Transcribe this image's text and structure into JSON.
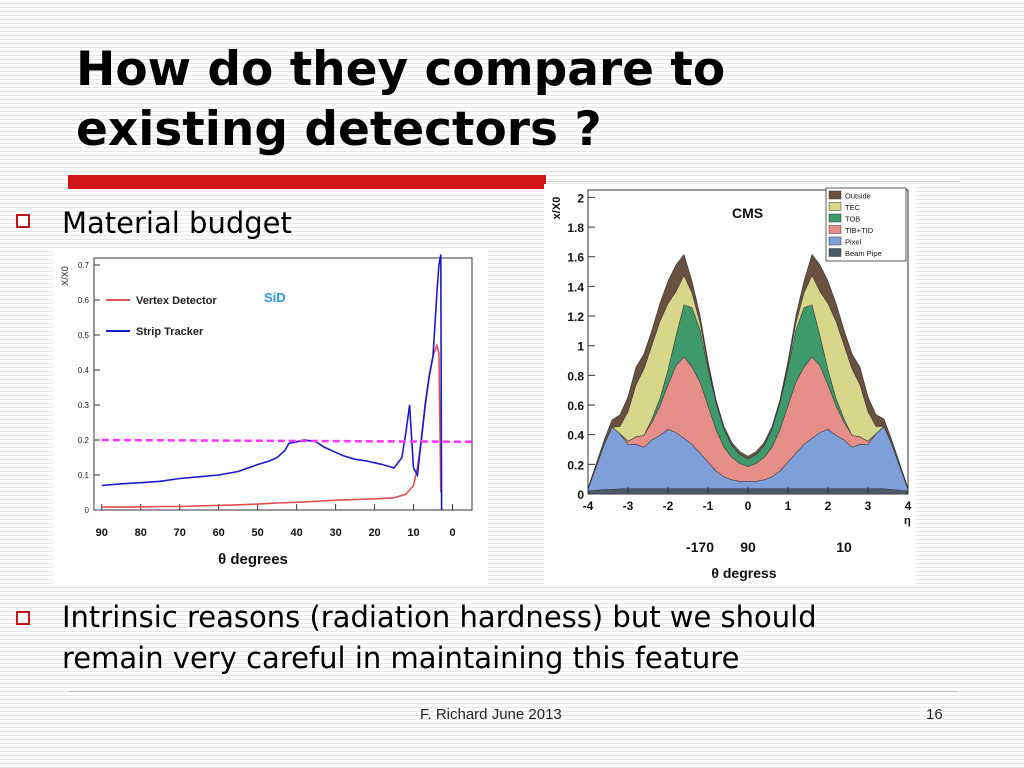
{
  "slide": {
    "title_line1": "How do they compare to",
    "title_line2": "existing detectors ?",
    "bullets": [
      "Material budget",
      "Intrinsic reasons (radiation hardness) but we should",
      "remain very careful in maintaining this feature"
    ],
    "footer": {
      "author_date": "F. Richard June 2013",
      "page_number": "16"
    },
    "colors": {
      "accent_red": "#d01616",
      "bullet_red": "#c0161b"
    }
  },
  "chart_data": [
    {
      "type": "line",
      "title": "SiD",
      "ylabel": "X/X0",
      "xlabel": "θ degrees",
      "x_ticks": [
        "90",
        "80",
        "70",
        "60",
        "50",
        "40",
        "30",
        "20",
        "10",
        "0"
      ],
      "y_ticks": [
        "0",
        "0.1",
        "0.2",
        "0.3",
        "0.4",
        "0.5",
        "0.6",
        "0.7"
      ],
      "xlim": [
        92,
        -5
      ],
      "ylim": [
        0,
        0.72
      ],
      "legend": "top-left",
      "series": [
        {
          "name": "Vertex Detector",
          "color": "#e05050",
          "x": [
            90,
            85,
            80,
            75,
            70,
            65,
            60,
            55,
            50,
            45,
            40,
            35,
            30,
            25,
            20,
            15,
            12,
            10,
            9,
            8,
            7,
            6,
            5,
            4,
            3.5,
            3
          ],
          "y": [
            0.009,
            0.009,
            0.009,
            0.01,
            0.01,
            0.012,
            0.013,
            0.015,
            0.017,
            0.02,
            0.022,
            0.025,
            0.028,
            0.03,
            0.032,
            0.035,
            0.045,
            0.07,
            0.12,
            0.2,
            0.3,
            0.38,
            0.44,
            0.47,
            0.45,
            0.05
          ]
        },
        {
          "name": "Strip Tracker",
          "color": "#1a1acc",
          "x": [
            90,
            85,
            80,
            75,
            70,
            65,
            60,
            55,
            50,
            47,
            45,
            43,
            42,
            40,
            38,
            35,
            33,
            30,
            28,
            25,
            22,
            20,
            18,
            15,
            13,
            12,
            11,
            10,
            9,
            8,
            7,
            6,
            5,
            4,
            3.5,
            3,
            2.8
          ],
          "y": [
            0.07,
            0.075,
            0.078,
            0.082,
            0.09,
            0.095,
            0.1,
            0.11,
            0.13,
            0.14,
            0.15,
            0.17,
            0.19,
            0.195,
            0.2,
            0.195,
            0.18,
            0.165,
            0.155,
            0.145,
            0.14,
            0.135,
            0.13,
            0.12,
            0.15,
            0.22,
            0.3,
            0.12,
            0.1,
            0.2,
            0.3,
            0.38,
            0.44,
            0.62,
            0.7,
            0.73,
            0.0
          ]
        },
        {
          "name": "",
          "color": "#ff33ff",
          "style": "dashed",
          "x": [
            90,
            -5
          ],
          "y": [
            0.2,
            0.195
          ]
        }
      ]
    },
    {
      "type": "area",
      "title": "CMS",
      "ylabel": "x/X0",
      "xlabel": "η",
      "secondary_xlabel": "θ degress",
      "secondary_x_ticks": [
        {
          "eta": -1.2,
          "label": "-170"
        },
        {
          "eta": 0,
          "label": "90"
        },
        {
          "eta": 2.4,
          "label": "10"
        }
      ],
      "x_ticks": [
        "-4",
        "-3",
        "-2",
        "-1",
        "0",
        "1",
        "2",
        "3",
        "4"
      ],
      "y_ticks": [
        "0",
        "0.2",
        "0.4",
        "0.6",
        "0.8",
        "1",
        "1.2",
        "1.4",
        "1.6",
        "1.8",
        "2"
      ],
      "xlim": [
        -4,
        4
      ],
      "ylim": [
        0,
        2.05
      ],
      "legend": "top-right",
      "eta": [
        -4,
        -3.6,
        -3.4,
        -3.2,
        -3.0,
        -2.8,
        -2.6,
        -2.4,
        -2.2,
        -2.0,
        -1.8,
        -1.6,
        -1.4,
        -1.2,
        -1.0,
        -0.8,
        -0.6,
        -0.4,
        -0.2,
        0,
        0.2,
        0.4,
        0.6,
        0.8,
        1.0,
        1.2,
        1.4,
        1.6,
        1.8,
        2.0,
        2.2,
        2.4,
        2.6,
        2.8,
        3.0,
        3.2,
        3.4,
        3.6,
        4
      ],
      "series": [
        {
          "name": "Beam Pipe",
          "color": "#4a5a6a",
          "values": [
            0.02,
            0.03,
            0.03,
            0.035,
            0.035,
            0.035,
            0.035,
            0.035,
            0.035,
            0.035,
            0.035,
            0.035,
            0.035,
            0.035,
            0.035,
            0.035,
            0.035,
            0.035,
            0.035,
            0.035,
            0.035,
            0.035,
            0.035,
            0.035,
            0.035,
            0.035,
            0.035,
            0.035,
            0.035,
            0.035,
            0.035,
            0.035,
            0.035,
            0.035,
            0.035,
            0.035,
            0.035,
            0.03,
            0.02
          ]
        },
        {
          "name": "Pixel",
          "color": "#7f9fd8",
          "values": [
            0.01,
            0.3,
            0.42,
            0.37,
            0.3,
            0.3,
            0.28,
            0.33,
            0.36,
            0.4,
            0.38,
            0.34,
            0.3,
            0.24,
            0.18,
            0.12,
            0.08,
            0.06,
            0.05,
            0.05,
            0.05,
            0.06,
            0.08,
            0.12,
            0.18,
            0.24,
            0.3,
            0.34,
            0.38,
            0.4,
            0.36,
            0.33,
            0.28,
            0.3,
            0.3,
            0.37,
            0.42,
            0.3,
            0.01
          ]
        },
        {
          "name": "TIB+TID",
          "color": "#e58f88",
          "values": [
            0,
            0,
            0,
            0,
            0.02,
            0.05,
            0.08,
            0.12,
            0.2,
            0.3,
            0.45,
            0.55,
            0.52,
            0.48,
            0.38,
            0.28,
            0.2,
            0.15,
            0.12,
            0.1,
            0.12,
            0.15,
            0.2,
            0.28,
            0.38,
            0.48,
            0.52,
            0.55,
            0.45,
            0.3,
            0.2,
            0.12,
            0.08,
            0.05,
            0.02,
            0,
            0,
            0,
            0
          ]
        },
        {
          "name": "TOB",
          "color": "#3e9a6a",
          "values": [
            0,
            0,
            0,
            0,
            0,
            0,
            0,
            0.02,
            0.05,
            0.1,
            0.2,
            0.35,
            0.4,
            0.35,
            0.25,
            0.18,
            0.12,
            0.08,
            0.06,
            0.05,
            0.06,
            0.08,
            0.12,
            0.18,
            0.25,
            0.35,
            0.4,
            0.35,
            0.2,
            0.1,
            0.05,
            0.02,
            0,
            0,
            0,
            0,
            0,
            0,
            0
          ]
        },
        {
          "name": "TEC",
          "color": "#d8d68a",
          "values": [
            0,
            0,
            0,
            0.05,
            0.2,
            0.35,
            0.45,
            0.5,
            0.52,
            0.45,
            0.3,
            0.2,
            0.1,
            0.05,
            0.02,
            0,
            0,
            0,
            0,
            0,
            0,
            0,
            0,
            0,
            0.02,
            0.05,
            0.1,
            0.2,
            0.3,
            0.45,
            0.52,
            0.5,
            0.45,
            0.35,
            0.2,
            0.05,
            0,
            0,
            0
          ]
        },
        {
          "name": "TIB+TID",
          "color": "#e58f88",
          "hidden": true,
          "values": []
        },
        {
          "name": "Outside",
          "color": "#6a5040",
          "values": [
            0.01,
            0.03,
            0.05,
            0.08,
            0.1,
            0.12,
            0.1,
            0.1,
            0.12,
            0.15,
            0.18,
            0.14,
            0.08,
            0.05,
            0.03,
            0.02,
            0.02,
            0.02,
            0.02,
            0.02,
            0.02,
            0.02,
            0.02,
            0.02,
            0.03,
            0.05,
            0.08,
            0.14,
            0.18,
            0.15,
            0.12,
            0.1,
            0.1,
            0.12,
            0.1,
            0.08,
            0.05,
            0.03,
            0.01
          ]
        }
      ],
      "legend_entries": [
        {
          "label": "Outside",
          "color": "#6a5040"
        },
        {
          "label": "TEC",
          "color": "#d8d68a"
        },
        {
          "label": "TOB",
          "color": "#3e9a6a"
        },
        {
          "label": "TIB+TID",
          "color": "#e58f88"
        },
        {
          "label": "Pixel",
          "color": "#7f9fd8"
        },
        {
          "label": "Beam Pipe",
          "color": "#4a5a6a"
        }
      ]
    }
  ]
}
